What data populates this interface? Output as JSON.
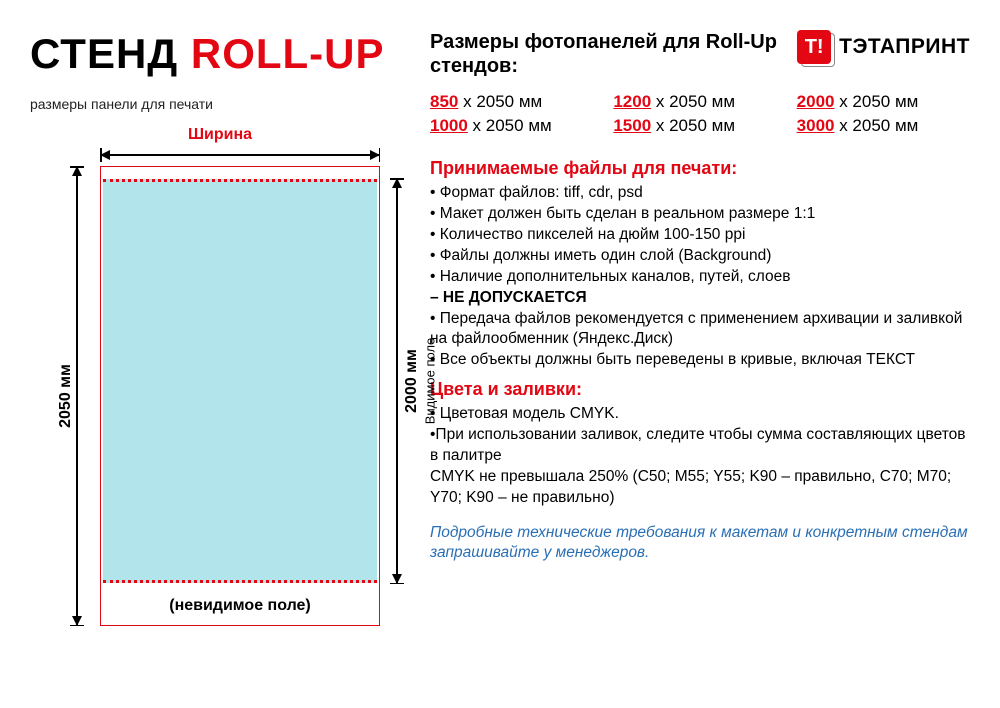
{
  "title": {
    "part1": "СТЕНД ",
    "part2": "ROLL-UP"
  },
  "left_subtitle": "размеры панели для печати",
  "diagram": {
    "width_label": "Ширина",
    "full_height_label": "2050 мм",
    "visible_height_label": "2000 мм",
    "visible_field_label": "Видимое поле",
    "invisible_label": "(невидимое поле)",
    "border_color": "#e30613",
    "fill_color": "#b2e4ec"
  },
  "sizes_title": "Размеры фотопанелей для Roll-Up стендов:",
  "brand": {
    "logo_letter": "Т!",
    "name": "ТЭТАПРИНТ"
  },
  "sizes": [
    {
      "w": "850",
      "rest": " x 2050 мм"
    },
    {
      "w": "1200",
      "rest": " x 2050 мм"
    },
    {
      "w": "2000",
      "rest": " x 2050 мм"
    },
    {
      "w": "1000",
      "rest": " x 2050 мм"
    },
    {
      "w": "1500",
      "rest": " x 2050 мм"
    },
    {
      "w": "3000",
      "rest": " x 2050 мм"
    }
  ],
  "files_heading": "Принимаемые файлы для печати:",
  "files_lines": [
    "• Формат файлов: tiff, cdr, psd",
    "• Макет должен быть сделан в реальном размере 1:1",
    "• Количество пикселей на дюйм 100-150 ppi",
    "• Файлы должны иметь один слой (Background)",
    "• Наличие дополнительных каналов, путей, слоев"
  ],
  "files_bold": "– НЕ ДОПУСКАЕТСЯ",
  "files_lines2": [
    "• Передача файлов рекомендуется с применением архивации и заливкой на файлообменник (Яндекс.Диск)",
    "• Все объекты должны быть переведены в кривые, включая ТЕКСТ"
  ],
  "colors_heading": "Цвета и заливки:",
  "colors_lines": [
    "• Цветовая модель CMYK.",
    "•При использовании заливок, следите чтобы сумма составляющих цветов в палитре",
    "CMYK не превышала 250% (C50; M55; Y55; K90 – правильно, C70; M70; Y70; K90 – не правильно)"
  ],
  "footer_note": "Подробные технические требования к макетам и конкретным стендам запрашивайте у менеджеров.",
  "palette": {
    "red": "#e30613",
    "blue": "#2a6fb5",
    "cyan_fill": "#b2e4ec",
    "text": "#000000"
  }
}
